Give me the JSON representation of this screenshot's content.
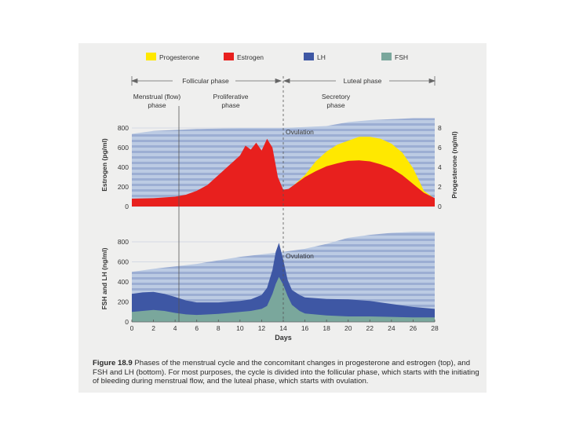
{
  "chart_data": {
    "type": "area",
    "legend": [
      {
        "label": "Progesterone",
        "color": "#ffe800"
      },
      {
        "label": "Estrogen",
        "color": "#e8201e"
      },
      {
        "label": "LH",
        "color": "#3e57a4"
      },
      {
        "label": "FSH",
        "color": "#7aa79c"
      }
    ],
    "phases": {
      "follicular": "Follicular phase",
      "luteal": "Luteal phase",
      "menstrual": [
        "Menstrual (flow)",
        "phase"
      ],
      "proliferative": [
        "Proliferative",
        "phase"
      ],
      "secretory": [
        "Secretory",
        "phase"
      ]
    },
    "xlabel": "Days",
    "xlim": [
      0,
      28
    ],
    "x_ticks": [
      0,
      2,
      4,
      6,
      8,
      10,
      12,
      14,
      16,
      18,
      20,
      22,
      24,
      26,
      28
    ],
    "top": {
      "ylabel_left": "Estrogen (pg/ml)",
      "ylabel_right": "Progesterone (ng/ml)",
      "ylim_left": [
        0,
        800
      ],
      "ylim_right": [
        0,
        8
      ],
      "y_ticks_left": [
        0,
        200,
        400,
        600,
        800
      ],
      "y_ticks_right": [
        0,
        2,
        4,
        6,
        8
      ],
      "annotation": "Ovulation",
      "estrogen": {
        "x": [
          0,
          2,
          4,
          5,
          6,
          7,
          8,
          9,
          10,
          10.5,
          11,
          11.5,
          12,
          12.5,
          13,
          13.5,
          14,
          14.5,
          15,
          16,
          17,
          18,
          19,
          20,
          21,
          22,
          23,
          24,
          25,
          26,
          27,
          28
        ],
        "values": [
          80,
          85,
          100,
          120,
          160,
          220,
          320,
          420,
          520,
          620,
          580,
          650,
          570,
          690,
          600,
          300,
          170,
          180,
          220,
          300,
          360,
          410,
          440,
          465,
          470,
          460,
          430,
          390,
          320,
          230,
          140,
          85
        ]
      },
      "progesterone": {
        "x": [
          0,
          14,
          14.5,
          15,
          16,
          17,
          18,
          19,
          20,
          21,
          22,
          23,
          24,
          25,
          26,
          27,
          28
        ],
        "values": [
          0.8,
          0.8,
          1.8,
          2.2,
          3.2,
          4.6,
          5.6,
          6.3,
          6.7,
          7.1,
          7.1,
          6.9,
          6.4,
          5.5,
          3.9,
          1.6,
          0.8
        ]
      },
      "background": {
        "x": [
          0,
          2,
          6,
          10,
          14,
          18,
          20,
          22,
          24,
          26,
          28
        ],
        "values": [
          740,
          770,
          790,
          800,
          800,
          820,
          860,
          880,
          890,
          900,
          900
        ]
      }
    },
    "bottom": {
      "ylabel": "FSH and LH (ng/ml)",
      "ylim": [
        0,
        800
      ],
      "y_ticks": [
        0,
        200,
        400,
        600,
        800
      ],
      "annotation": "Ovulation",
      "lh": {
        "x": [
          0,
          1,
          2,
          3,
          4,
          5,
          6,
          8,
          10,
          11,
          12,
          12.5,
          13,
          13.3,
          13.6,
          14,
          14.4,
          14.8,
          15.5,
          16,
          18,
          20,
          22,
          24,
          26,
          28
        ],
        "values": [
          280,
          295,
          300,
          280,
          250,
          215,
          195,
          195,
          210,
          225,
          270,
          340,
          520,
          700,
          790,
          620,
          420,
          320,
          270,
          245,
          230,
          225,
          210,
          180,
          150,
          130
        ]
      },
      "fsh": {
        "x": [
          0,
          1,
          2,
          3,
          4,
          5,
          6,
          8,
          10,
          11,
          12,
          12.5,
          13,
          13.3,
          13.6,
          14,
          14.4,
          14.8,
          15.5,
          16,
          18,
          20,
          22,
          24,
          26,
          28
        ],
        "values": [
          100,
          110,
          120,
          110,
          90,
          75,
          70,
          80,
          100,
          110,
          130,
          160,
          280,
          380,
          450,
          370,
          260,
          170,
          110,
          85,
          65,
          55,
          55,
          50,
          45,
          45
        ]
      },
      "background": {
        "x": [
          0,
          2,
          6,
          10,
          14,
          16,
          18,
          20,
          22,
          24,
          26,
          28
        ],
        "values": [
          500,
          530,
          580,
          650,
          700,
          730,
          780,
          840,
          870,
          890,
          900,
          900
        ]
      }
    },
    "colors": {
      "stripe_light": "#bccbe3",
      "stripe_dark": "#9caed3",
      "grid_band": "#dfe4ee"
    }
  },
  "caption": {
    "figure_label": "Figure 18.9",
    "text": "Phases of the menstrual cycle and the concomitant changes in progesterone and estrogen (top), and FSH and LH (bottom). For most purposes, the cycle is divided into the follicular phase, which starts with the initiating of bleeding during menstrual flow, and the luteal phase, which starts with ovulation."
  }
}
